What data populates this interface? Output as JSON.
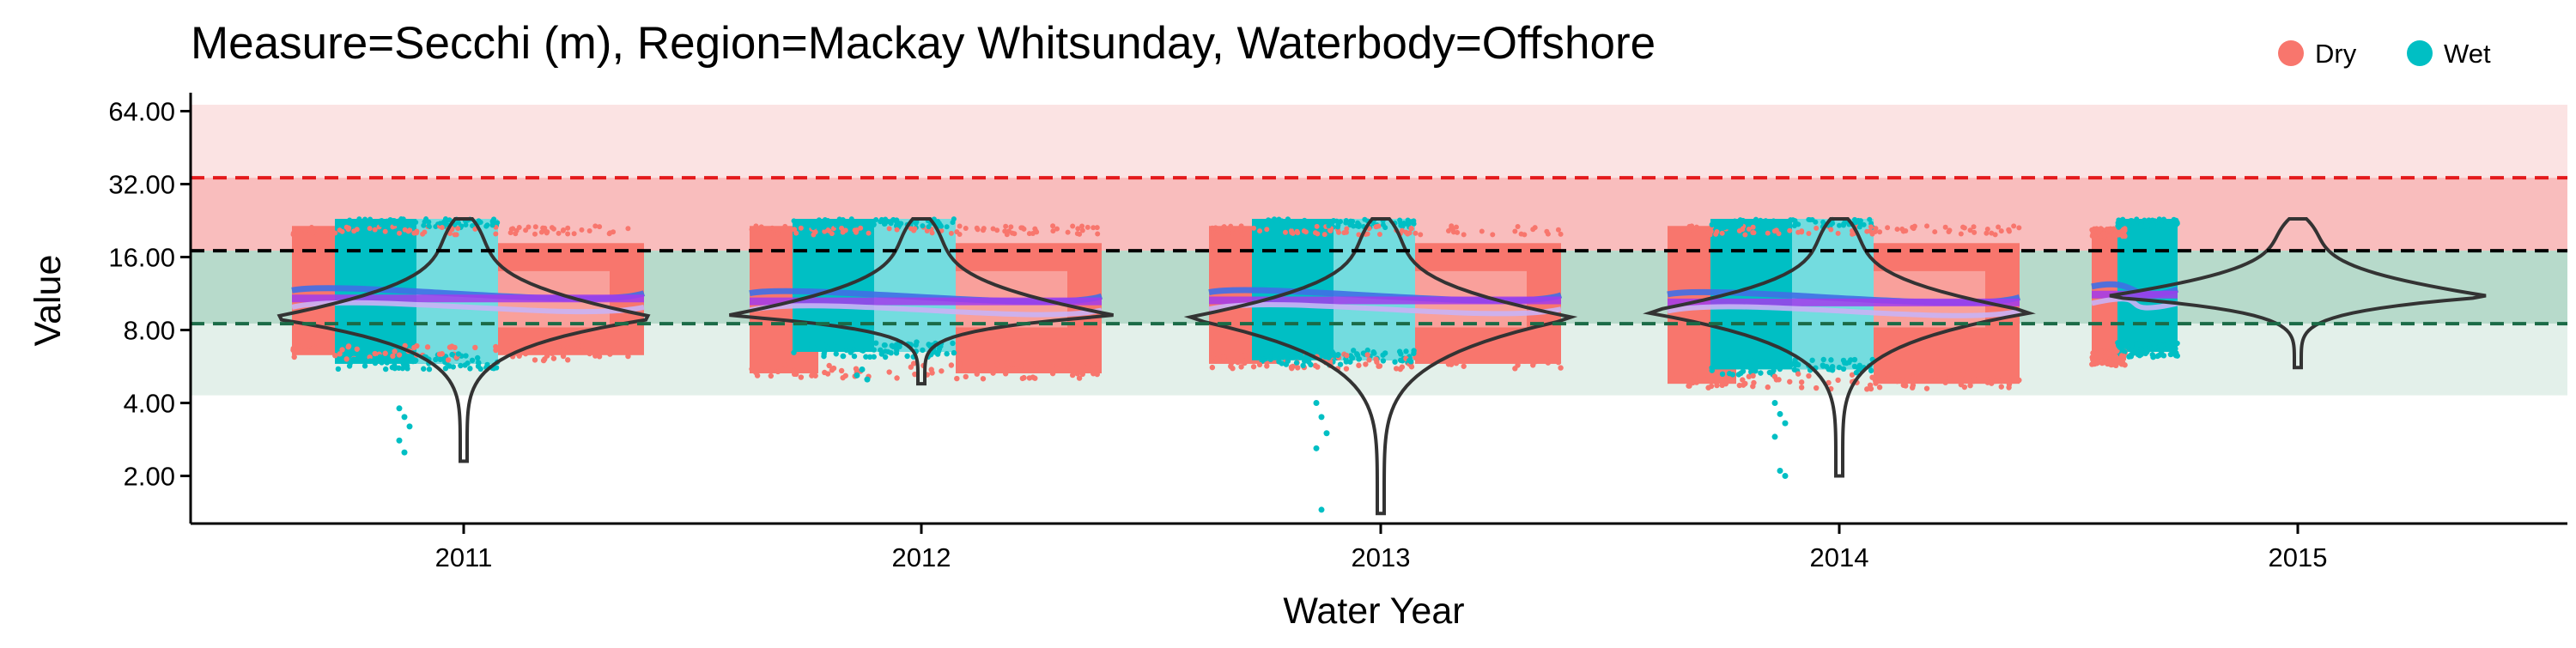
{
  "chart_data": {
    "type": "violin-scatter",
    "title": "Measure=Secchi (m), Region=Mackay Whitsunday, Waterbody=Offshore",
    "xlabel": "Water Year",
    "ylabel": "Value",
    "y_scale": "log2",
    "ylim": [
      1.5,
      68
    ],
    "categories": [
      "2011",
      "2012",
      "2013",
      "2014",
      "2015"
    ],
    "y_ticks": [
      2,
      4,
      8,
      16,
      32,
      64
    ],
    "y_tick_labels": [
      "2.00",
      "4.00",
      "8.00",
      "16.00",
      "32.00",
      "64.00"
    ],
    "legend": {
      "position": "top-right",
      "entries": [
        {
          "label": "Dry",
          "color": "#F8766D"
        },
        {
          "label": "Wet",
          "color": "#00BFC4"
        }
      ]
    },
    "reference_lines": [
      {
        "value": 34,
        "color": "#E41A1C",
        "style": "dashed"
      },
      {
        "value": 17,
        "color": "#000000",
        "style": "dashed"
      },
      {
        "value": 8.5,
        "color": "#1B6B47",
        "style": "dashed"
      }
    ],
    "bands": [
      {
        "from": 34,
        "to": 68,
        "color": "#FBE3E3"
      },
      {
        "from": 17,
        "to": 34,
        "color": "#F9BDBD"
      },
      {
        "from": 8.5,
        "to": 17,
        "color": "#B7DACB"
      },
      {
        "from": 4.3,
        "to": 8.5,
        "color": "#E3F0EA"
      }
    ],
    "series": [
      {
        "name": "Dry",
        "color": "#F8766D"
      },
      {
        "name": "Wet",
        "color": "#00BFC4"
      }
    ],
    "groups": [
      {
        "year": "2011",
        "wet_range": [
          5.8,
          23
        ],
        "dry_range": [
          6.3,
          21.5
        ],
        "min": 2.3,
        "max": 23,
        "mode": 9.0,
        "trend": 10.8,
        "wet_outliers": [
          3.8,
          3.5,
          3.2,
          2.8,
          2.5
        ]
      },
      {
        "year": "2012",
        "wet_range": [
          6.5,
          23
        ],
        "dry_range": [
          5.3,
          21.5
        ],
        "min": 4.8,
        "max": 23,
        "mode": 9.2,
        "trend": 10.5,
        "wet_outliers": [
          5.2,
          5.5,
          5.0
        ]
      },
      {
        "year": "2013",
        "wet_range": [
          6.0,
          23
        ],
        "dry_range": [
          5.8,
          21.5
        ],
        "min": 1.4,
        "max": 23,
        "mode": 9.0,
        "trend": 10.6,
        "wet_outliers": [
          4.0,
          3.5,
          3.0,
          2.6,
          1.45
        ]
      },
      {
        "year": "2014",
        "wet_range": [
          5.5,
          23
        ],
        "dry_range": [
          4.8,
          21.5
        ],
        "min": 2.0,
        "max": 23,
        "mode": 9.5,
        "trend": 10.4,
        "wet_outliers": [
          4.0,
          3.6,
          3.3,
          2.9,
          2.1,
          2.0
        ]
      },
      {
        "year": "2015",
        "wet_range": [
          6.5,
          23
        ],
        "dry_range": [
          6.0,
          21
        ],
        "min": 5.6,
        "max": 23,
        "mode": 11.0,
        "trend": 11.2,
        "wet_outliers": []
      }
    ]
  }
}
